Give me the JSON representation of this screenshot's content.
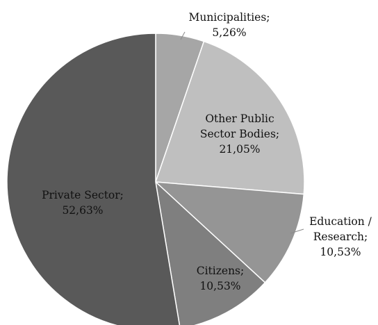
{
  "chart_data": {
    "type": "pie",
    "start_angle_deg": 0,
    "direction": "clockwise",
    "slices": [
      {
        "label": "Municipalities",
        "value": 5.26,
        "text_lines": [
          "Municipalities;",
          "5,26%"
        ],
        "color": "#a6a6a6"
      },
      {
        "label": "Other Public Sector Bodies",
        "value": 21.05,
        "text_lines": [
          "Other Public",
          "Sector Bodies;",
          "21,05%"
        ],
        "color": "#bfbfbf"
      },
      {
        "label": "Education / Research",
        "value": 10.53,
        "text_lines": [
          "Education /",
          "Research;",
          "10,53%"
        ],
        "color": "#959595"
      },
      {
        "label": "Citizens",
        "value": 10.53,
        "text_lines": [
          "Citizens;",
          "10,53%"
        ],
        "color": "#7f7f7f"
      },
      {
        "label": "Private Sector",
        "value": 52.63,
        "text_lines": [
          "Private Sector;",
          "52,63%"
        ],
        "color": "#595959"
      }
    ],
    "legend": "none"
  }
}
